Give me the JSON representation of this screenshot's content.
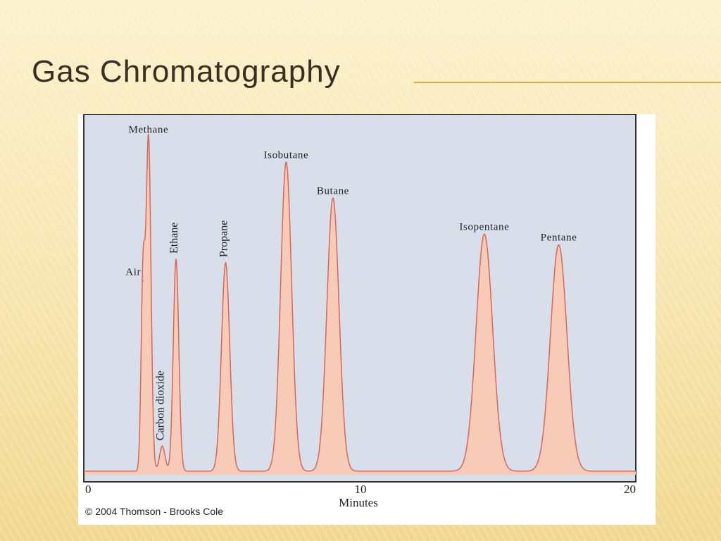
{
  "slide": {
    "title": "Gas Chromatography",
    "copyright": "© 2004 Thomson - Brooks Cole"
  },
  "colors": {
    "plot_background": "#d8dfea",
    "peak_fill": "#f7cbb8",
    "peak_line": "#d9665a",
    "title_text": "#3c2f22",
    "accent_rule": "#e2a64a"
  },
  "chart_data": {
    "type": "line",
    "title": "",
    "xlabel": "Minutes",
    "ylabel": "",
    "xlim": [
      0,
      20
    ],
    "ylim": [
      0,
      100
    ],
    "x_ticks": [
      0,
      10,
      20
    ],
    "grid": false,
    "baseline": 1,
    "peaks": [
      {
        "name": "Air",
        "time": 2.1,
        "height": 53,
        "width": 0.07,
        "label_rotated": false
      },
      {
        "name": "Methane",
        "time": 2.3,
        "height": 93,
        "width": 0.09,
        "label_rotated": false
      },
      {
        "name": "Carbon dioxide",
        "time": 2.8,
        "height": 7,
        "width": 0.1,
        "label_rotated": true
      },
      {
        "name": "Ethane",
        "time": 3.3,
        "height": 59,
        "width": 0.1,
        "label_rotated": true
      },
      {
        "name": "Propane",
        "time": 5.1,
        "height": 58,
        "width": 0.15,
        "label_rotated": true
      },
      {
        "name": "Isobutane",
        "time": 7.3,
        "height": 86,
        "width": 0.2,
        "label_rotated": false
      },
      {
        "name": "Butane",
        "time": 9.0,
        "height": 76,
        "width": 0.22,
        "label_rotated": false
      },
      {
        "name": "Isopentane",
        "time": 14.5,
        "height": 66,
        "width": 0.3,
        "label_rotated": false
      },
      {
        "name": "Pentane",
        "time": 17.2,
        "height": 63,
        "width": 0.3,
        "label_rotated": false
      }
    ]
  }
}
